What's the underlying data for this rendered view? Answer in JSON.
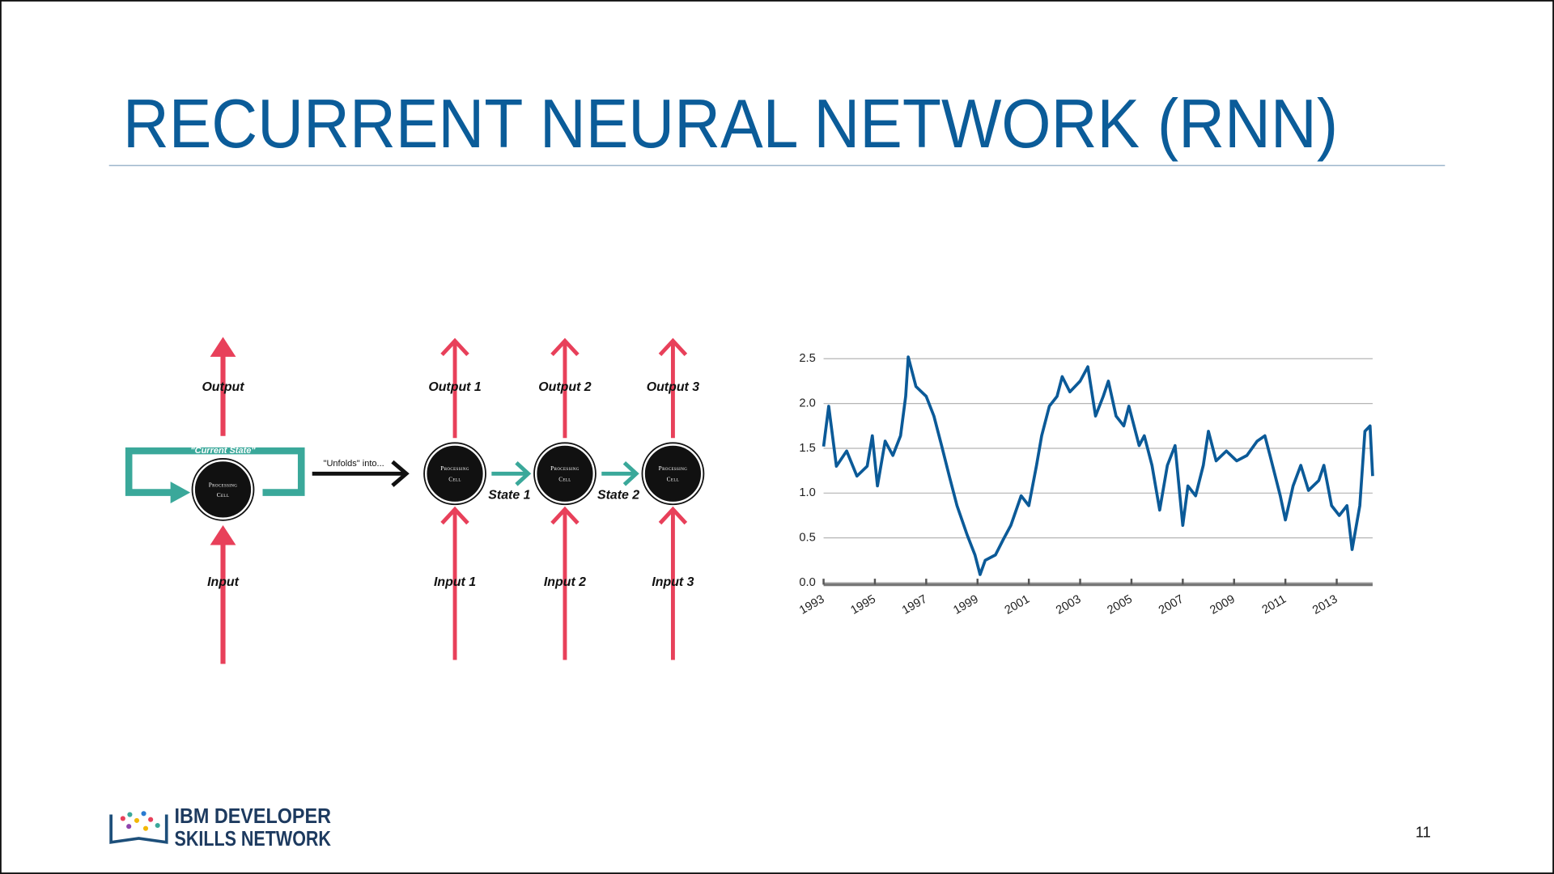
{
  "slide": {
    "title": "RECURRENT NEURAL NETWORK (RNN)",
    "page_number": "11"
  },
  "diagram": {
    "rolled": {
      "output": "Output",
      "state": "\"Current State\"",
      "cell": [
        "Processing",
        "Cell"
      ],
      "input": "Input"
    },
    "unfolds": "\"Unfolds\" into...",
    "cells": [
      {
        "output": "Output 1",
        "cell": [
          "Processing",
          "Cell"
        ],
        "input": "Input 1"
      },
      {
        "output": "Output 2",
        "cell": [
          "Processing",
          "Cell"
        ],
        "input": "Input 2"
      },
      {
        "output": "Output 3",
        "cell": [
          "Processing",
          "Cell"
        ],
        "input": "Input 3"
      }
    ],
    "states": [
      "State 1",
      "State 2"
    ]
  },
  "logo": {
    "line1": "IBM DEVELOPER",
    "line2": "SKILLS NETWORK"
  },
  "chart_data": {
    "type": "line",
    "x": [
      1993.0,
      1993.2,
      1993.5,
      1993.9,
      1994.3,
      1994.7,
      1994.9,
      1995.1,
      1995.4,
      1995.7,
      1996.0,
      1996.2,
      1996.3,
      1996.6,
      1997.0,
      1997.3,
      1997.6,
      1997.9,
      1998.2,
      1998.6,
      1998.9,
      1999.1,
      1999.3,
      1999.7,
      2000.0,
      2000.3,
      2000.7,
      2001.0,
      2001.3,
      2001.5,
      2001.8,
      2002.1,
      2002.3,
      2002.6,
      2003.0,
      2003.3,
      2003.6,
      2003.9,
      2004.1,
      2004.4,
      2004.7,
      2004.9,
      2005.3,
      2005.5,
      2005.8,
      2006.1,
      2006.4,
      2006.7,
      2007.0,
      2007.2,
      2007.5,
      2007.8,
      2008.0,
      2008.3,
      2008.7,
      2009.1,
      2009.5,
      2009.9,
      2010.2,
      2010.4,
      2010.8,
      2011.0,
      2011.3,
      2011.6,
      2011.9,
      2012.3,
      2012.5,
      2012.8,
      2013.1,
      2013.4,
      2013.6,
      2013.9,
      2014.1,
      2014.3,
      2014.4
    ],
    "series": [
      {
        "color": "#0b5a98",
        "values": [
          1.52,
          1.97,
          1.3,
          1.47,
          1.19,
          1.3,
          1.64,
          1.08,
          1.58,
          1.42,
          1.64,
          2.08,
          2.52,
          2.19,
          2.08,
          1.86,
          1.53,
          1.19,
          0.86,
          0.53,
          0.31,
          0.09,
          0.25,
          0.31,
          0.48,
          0.64,
          0.97,
          0.86,
          1.31,
          1.64,
          1.97,
          2.08,
          2.3,
          2.13,
          2.25,
          2.41,
          1.86,
          2.08,
          2.25,
          1.86,
          1.75,
          1.97,
          1.53,
          1.64,
          1.31,
          0.81,
          1.31,
          1.53,
          0.64,
          1.08,
          0.97,
          1.31,
          1.69,
          1.36,
          1.47,
          1.36,
          1.42,
          1.58,
          1.64,
          1.42,
          0.97,
          0.7,
          1.08,
          1.31,
          1.03,
          1.14,
          1.31,
          0.86,
          0.75,
          0.86,
          0.37,
          0.86,
          1.69,
          1.75,
          1.19
        ]
      }
    ],
    "xlim": [
      1993,
      2014.4
    ],
    "ylim": [
      0,
      2.5
    ],
    "xticks": [
      1993,
      1995,
      1997,
      1999,
      2001,
      2003,
      2005,
      2007,
      2009,
      2011,
      2013
    ],
    "yticks": [
      {
        "value": 0,
        "label": "0.0"
      },
      0.5,
      {
        "value": 1,
        "label": "1.0"
      },
      1.5,
      {
        "value": 2,
        "label": "2.0"
      },
      2.5
    ],
    "grid": true
  }
}
